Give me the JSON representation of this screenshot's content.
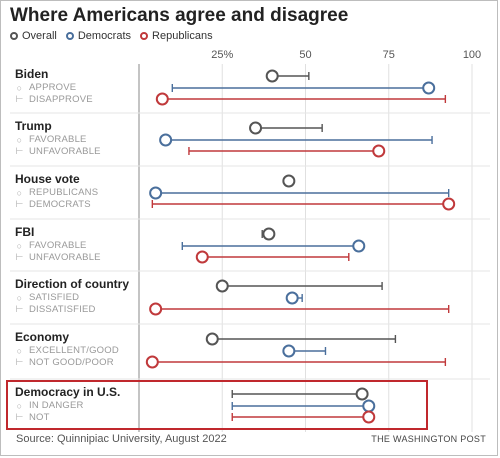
{
  "title": "Where Americans agree and disagree",
  "legend": {
    "overall": "Overall",
    "democrats": "Democrats",
    "republicans": "Republicans"
  },
  "colors": {
    "overall": "#555555",
    "democrats": "#4a6f9c",
    "republicans": "#c0393b",
    "highlight": "#c0282d"
  },
  "source": "Source: Quinnipiac University, August 2022",
  "credit": "THE WASHINGTON POST",
  "chart_data": {
    "type": "dot-range",
    "xlim": [
      0,
      100
    ],
    "ticks": [
      {
        "value": 25,
        "label": "25%"
      },
      {
        "value": 50,
        "label": "50"
      },
      {
        "value": 75,
        "label": "75"
      },
      {
        "value": 100,
        "label": "100"
      }
    ],
    "groups": [
      {
        "name": "Biden",
        "labels": [
          "APPROVE",
          "DISAPPROVE"
        ],
        "overall": 40,
        "democrats": 87,
        "republicans": 7,
        "overall_range": [
          40,
          51
        ],
        "democrats_range": [
          10,
          87
        ],
        "republicans_range": [
          7,
          92
        ]
      },
      {
        "name": "Trump",
        "labels": [
          "FAVORABLE",
          "UNFAVORABLE"
        ],
        "overall": 35,
        "democrats": 8,
        "republicans": 72,
        "overall_range": [
          35,
          55
        ],
        "democrats_range": [
          8,
          88
        ],
        "republicans_range": [
          15,
          72
        ]
      },
      {
        "name": "House vote",
        "labels": [
          "REPUBLICANS",
          "DEMOCRATS"
        ],
        "overall": 45,
        "democrats": 5,
        "republicans": 93,
        "overall_range": [
          45,
          45
        ],
        "democrats_range": [
          5,
          93
        ],
        "republicans_range": [
          4,
          93
        ]
      },
      {
        "name": "FBI",
        "labels": [
          "FAVORABLE",
          "UNFAVORABLE"
        ],
        "overall": 39,
        "democrats": 66,
        "republicans": 19,
        "overall_range": [
          37,
          39
        ],
        "democrats_range": [
          13,
          66
        ],
        "republicans_range": [
          19,
          63
        ]
      },
      {
        "name": "Direction of country",
        "labels": [
          "SATISFIED",
          "DISSATISFIED"
        ],
        "overall": 25,
        "democrats": 46,
        "republicans": 5,
        "overall_range": [
          25,
          73
        ],
        "democrats_range": [
          46,
          49
        ],
        "republicans_range": [
          5,
          93
        ]
      },
      {
        "name": "Economy",
        "labels": [
          "EXCELLENT/GOOD",
          "NOT GOOD/POOR"
        ],
        "overall": 22,
        "democrats": 45,
        "republicans": 4,
        "overall_range": [
          22,
          77
        ],
        "democrats_range": [
          45,
          56
        ],
        "republicans_range": [
          4,
          92
        ]
      },
      {
        "name": "Democracy in U.S.",
        "labels": [
          "IN DANGER",
          "NOT"
        ],
        "overall": 67,
        "democrats": 69,
        "republicans": 69,
        "overall_range": [
          28,
          67
        ],
        "democrats_range": [
          28,
          69
        ],
        "republicans_range": [
          28,
          69
        ]
      }
    ]
  }
}
